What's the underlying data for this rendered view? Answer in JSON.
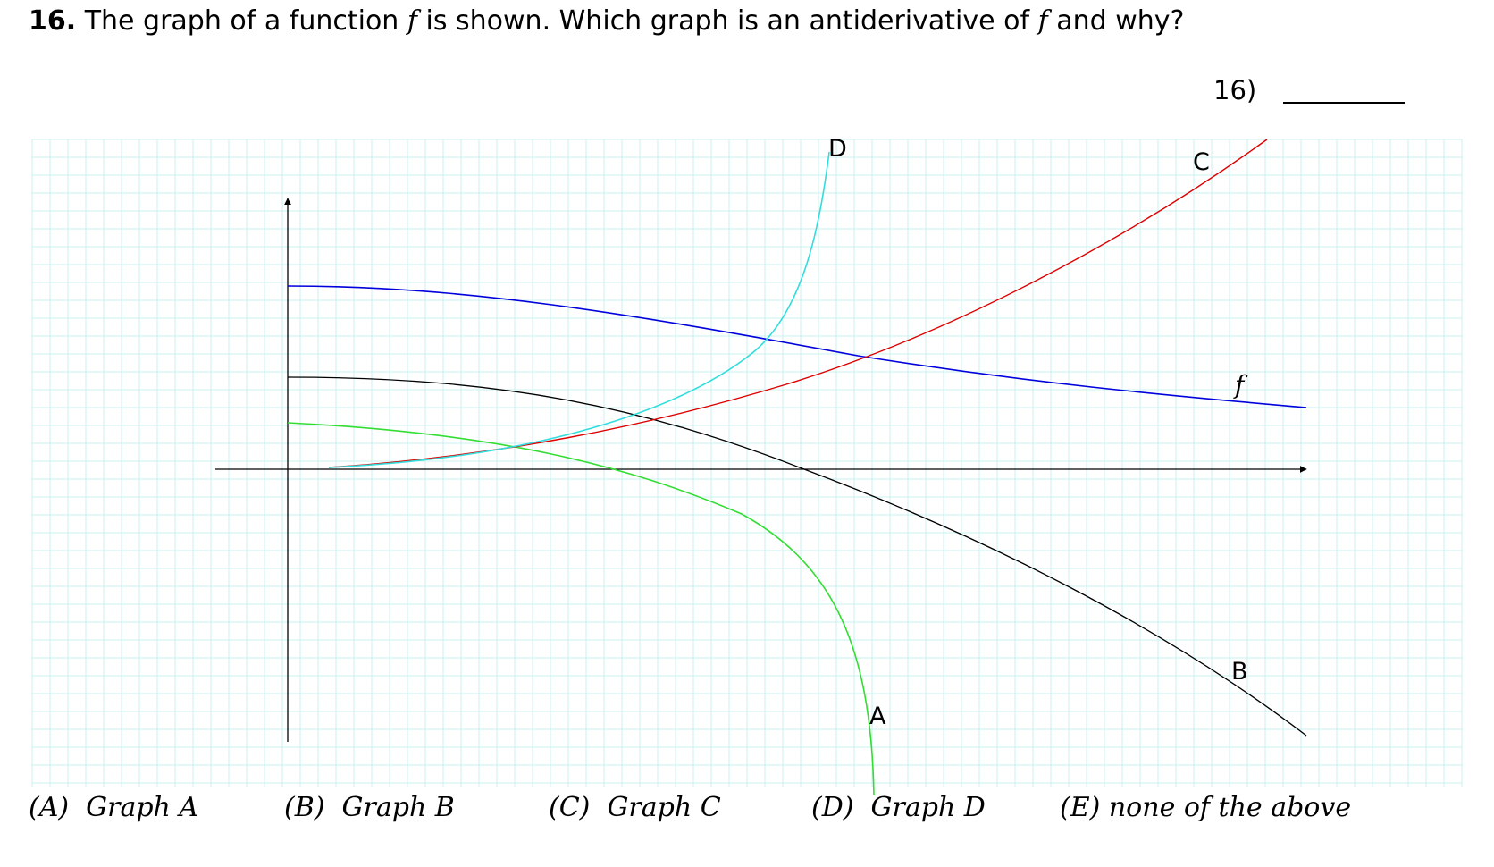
{
  "question": {
    "number": "16.",
    "text_part1": "The graph of a function",
    "var1": "f",
    "text_part2": "is shown. Which graph is an antiderivative of",
    "var2": "f",
    "text_part3": "and why?"
  },
  "answer_slot": {
    "label": "16)"
  },
  "figure": {
    "curve_labels": {
      "f": "f",
      "A": "A",
      "B": "B",
      "C": "C",
      "D": "D"
    },
    "colors": {
      "grid": "#c8f2f2",
      "axes": "#000000",
      "f": "#0000dd",
      "A": "#33dd33",
      "B": "#000000",
      "C": "#dd0000",
      "D": "#33dddd"
    }
  },
  "choices": [
    {
      "label": "(A)",
      "text": "Graph A"
    },
    {
      "label": "(B)",
      "text": "Graph B"
    },
    {
      "label": "(C)",
      "text": "Graph C"
    },
    {
      "label": "(D)",
      "text": "Graph D"
    },
    {
      "label": "(E)",
      "text": "none of the above"
    }
  ]
}
